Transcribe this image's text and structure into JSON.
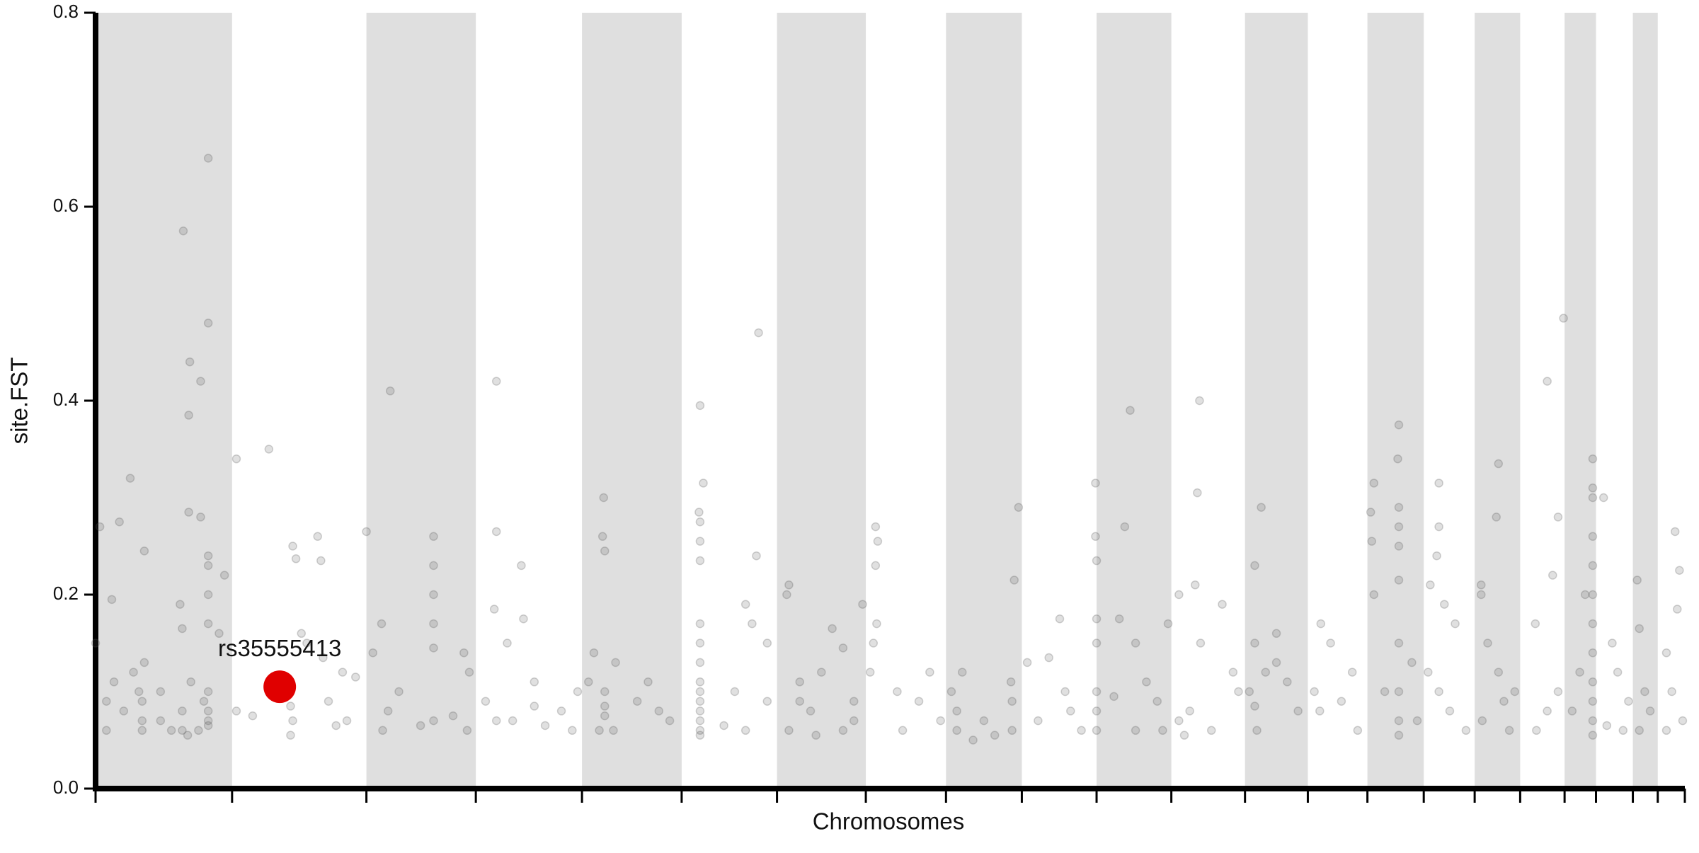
{
  "chart_data": {
    "type": "manhattan",
    "xlabel": "Chromosomes",
    "ylabel": "site.FST",
    "xlim": [
      0,
      1467
    ],
    "ylim": [
      0,
      0.8
    ],
    "yticks": [
      {
        "value": 0,
        "label": "0.0"
      },
      0.2,
      0.4,
      0.6,
      0.8
    ],
    "chromosome_bounds": [
      0,
      126,
      250,
      351,
      449,
      541,
      629,
      711,
      785,
      855,
      924,
      993,
      1061,
      1119,
      1174,
      1226,
      1273,
      1315,
      1356,
      1385,
      1419,
      1442,
      1467
    ],
    "band_color": "#dfdfdf",
    "series": [
      {
        "color": "#555555",
        "x": [
          104,
          81,
          104,
          87,
          97,
          86,
          32,
          97,
          86,
          4,
          22,
          45,
          104,
          104,
          119,
          15,
          78,
          80,
          104,
          104,
          114,
          0,
          35,
          45,
          60,
          40,
          104,
          104,
          104,
          104,
          80,
          80,
          85,
          88,
          43,
          43,
          43,
          26,
          10,
          10,
          17,
          60,
          70,
          95,
          100,
          130,
          160,
          182,
          185,
          205,
          208,
          182,
          180,
          190,
          195,
          210,
          180,
          228,
          215,
          222,
          232,
          240,
          145,
          130,
          250,
          272,
          264,
          312,
          312,
          312,
          312,
          312,
          312,
          280,
          256,
          270,
          265,
          300,
          330,
          340,
          345,
          343,
          370,
          370,
          368,
          380,
          393,
          395,
          405,
          405,
          370,
          385,
          415,
          430,
          445,
          440,
          360,
          469,
          468,
          470,
          460,
          470,
          470,
          470,
          478,
          480,
          455,
          500,
          510,
          520,
          530,
          465,
          558,
          561,
          557,
          558,
          558,
          558,
          558,
          558,
          558,
          558,
          558,
          558,
          558,
          558,
          558,
          558,
          612,
          600,
          606,
          610,
          620,
          590,
          580,
          620,
          600,
          640,
          638,
          650,
          660,
          640,
          670,
          680,
          690,
          700,
          700,
          708,
          650,
          690,
          665,
          720,
          722,
          720,
          721,
          718,
          715,
          740,
          745,
          760,
          770,
          780,
          852,
          848,
          790,
          795,
          795,
          800,
          820,
          845,
          846,
          846,
          830,
          810,
          923,
          923,
          924,
          924,
          924,
          924,
          924,
          924,
          860,
          880,
          890,
          900,
          910,
          870,
          895,
          955,
          950,
          945,
          960,
          970,
          980,
          985,
          960,
          940,
          990,
          1019,
          1017,
          1015,
          1000,
          1020,
          1010,
          1040,
          1050,
          1055,
          1000,
          1030,
          1005,
          1076,
          1070,
          1070,
          1065,
          1070,
          1072,
          1090,
          1090,
          1100,
          1110,
          1080,
          1131,
          1140,
          1125,
          1130,
          1150,
          1165,
          1160,
          1180,
          1177,
          1178,
          1203,
          1202,
          1203,
          1203,
          1203,
          1203,
          1203,
          1203,
          1203,
          1203,
          1180,
          1190,
          1215,
          1220,
          1240,
          1240,
          1238,
          1232,
          1245,
          1255,
          1240,
          1250,
          1265,
          1230,
          1279,
          1279,
          1285,
          1295,
          1293,
          1295,
          1300,
          1305,
          1310,
          1280,
          1329,
          1355,
          1340,
          1345,
          1350,
          1340,
          1330,
          1350,
          1382,
          1382,
          1382,
          1382,
          1382,
          1382,
          1382,
          1382,
          1382,
          1382,
          1382,
          1382,
          1370,
          1363,
          1375,
          1392,
          1400,
          1405,
          1395,
          1415,
          1410,
          1423,
          1425,
          1430,
          1425,
          1435,
          1458,
          1462,
          1460,
          1450,
          1455,
          1465,
          1450
        ],
        "values": [
          0.65,
          0.575,
          0.48,
          0.44,
          0.42,
          0.385,
          0.32,
          0.28,
          0.285,
          0.27,
          0.275,
          0.245,
          0.24,
          0.23,
          0.22,
          0.195,
          0.19,
          0.165,
          0.2,
          0.17,
          0.16,
          0.15,
          0.12,
          0.13,
          0.1,
          0.1,
          0.1,
          0.08,
          0.07,
          0.065,
          0.08,
          0.06,
          0.055,
          0.11,
          0.09,
          0.07,
          0.06,
          0.08,
          0.06,
          0.09,
          0.11,
          0.07,
          0.06,
          0.06,
          0.09,
          0.34,
          0.35,
          0.25,
          0.237,
          0.26,
          0.235,
          0.07,
          0.085,
          0.16,
          0.15,
          0.135,
          0.055,
          0.12,
          0.09,
          0.065,
          0.07,
          0.115,
          0.075,
          0.08,
          0.265,
          0.41,
          0.17,
          0.26,
          0.23,
          0.2,
          0.17,
          0.145,
          0.07,
          0.1,
          0.14,
          0.08,
          0.06,
          0.065,
          0.075,
          0.14,
          0.12,
          0.06,
          0.42,
          0.265,
          0.185,
          0.15,
          0.23,
          0.175,
          0.11,
          0.085,
          0.07,
          0.07,
          0.065,
          0.08,
          0.1,
          0.06,
          0.09,
          0.3,
          0.26,
          0.245,
          0.14,
          0.1,
          0.085,
          0.075,
          0.06,
          0.13,
          0.11,
          0.09,
          0.11,
          0.08,
          0.07,
          0.06,
          0.395,
          0.315,
          0.285,
          0.275,
          0.255,
          0.235,
          0.17,
          0.15,
          0.13,
          0.11,
          0.1,
          0.09,
          0.08,
          0.07,
          0.06,
          0.055,
          0.47,
          0.19,
          0.17,
          0.24,
          0.15,
          0.1,
          0.065,
          0.09,
          0.06,
          0.21,
          0.2,
          0.11,
          0.08,
          0.06,
          0.12,
          0.165,
          0.145,
          0.09,
          0.07,
          0.19,
          0.09,
          0.06,
          0.055,
          0.27,
          0.255,
          0.23,
          0.17,
          0.15,
          0.12,
          0.1,
          0.06,
          0.09,
          0.12,
          0.07,
          0.29,
          0.215,
          0.1,
          0.08,
          0.06,
          0.12,
          0.07,
          0.11,
          0.09,
          0.06,
          0.055,
          0.05,
          0.315,
          0.26,
          0.235,
          0.175,
          0.15,
          0.1,
          0.08,
          0.06,
          0.13,
          0.135,
          0.175,
          0.08,
          0.06,
          0.07,
          0.1,
          0.39,
          0.27,
          0.175,
          0.15,
          0.11,
          0.09,
          0.06,
          0.06,
          0.095,
          0.17,
          0.4,
          0.305,
          0.21,
          0.2,
          0.15,
          0.08,
          0.19,
          0.12,
          0.1,
          0.07,
          0.06,
          0.055,
          0.29,
          0.23,
          0.15,
          0.1,
          0.085,
          0.06,
          0.16,
          0.13,
          0.11,
          0.08,
          0.12,
          0.17,
          0.15,
          0.1,
          0.08,
          0.09,
          0.06,
          0.12,
          0.315,
          0.285,
          0.255,
          0.375,
          0.34,
          0.29,
          0.27,
          0.25,
          0.215,
          0.15,
          0.1,
          0.07,
          0.055,
          0.2,
          0.1,
          0.13,
          0.07,
          0.315,
          0.27,
          0.24,
          0.21,
          0.19,
          0.17,
          0.1,
          0.08,
          0.06,
          0.12,
          0.21,
          0.2,
          0.15,
          0.335,
          0.28,
          0.12,
          0.09,
          0.06,
          0.1,
          0.07,
          0.17,
          0.485,
          0.42,
          0.22,
          0.28,
          0.08,
          0.06,
          0.1,
          0.3,
          0.34,
          0.31,
          0.26,
          0.23,
          0.2,
          0.17,
          0.14,
          0.11,
          0.09,
          0.07,
          0.055,
          0.12,
          0.08,
          0.2,
          0.3,
          0.15,
          0.12,
          0.065,
          0.09,
          0.06,
          0.215,
          0.165,
          0.1,
          0.06,
          0.08,
          0.265,
          0.225,
          0.185,
          0.14,
          0.1,
          0.07,
          0.06
        ]
      }
    ],
    "highlight": {
      "label": "rs35555413",
      "x": 170,
      "value": 0.105,
      "color": "#e00000"
    }
  }
}
